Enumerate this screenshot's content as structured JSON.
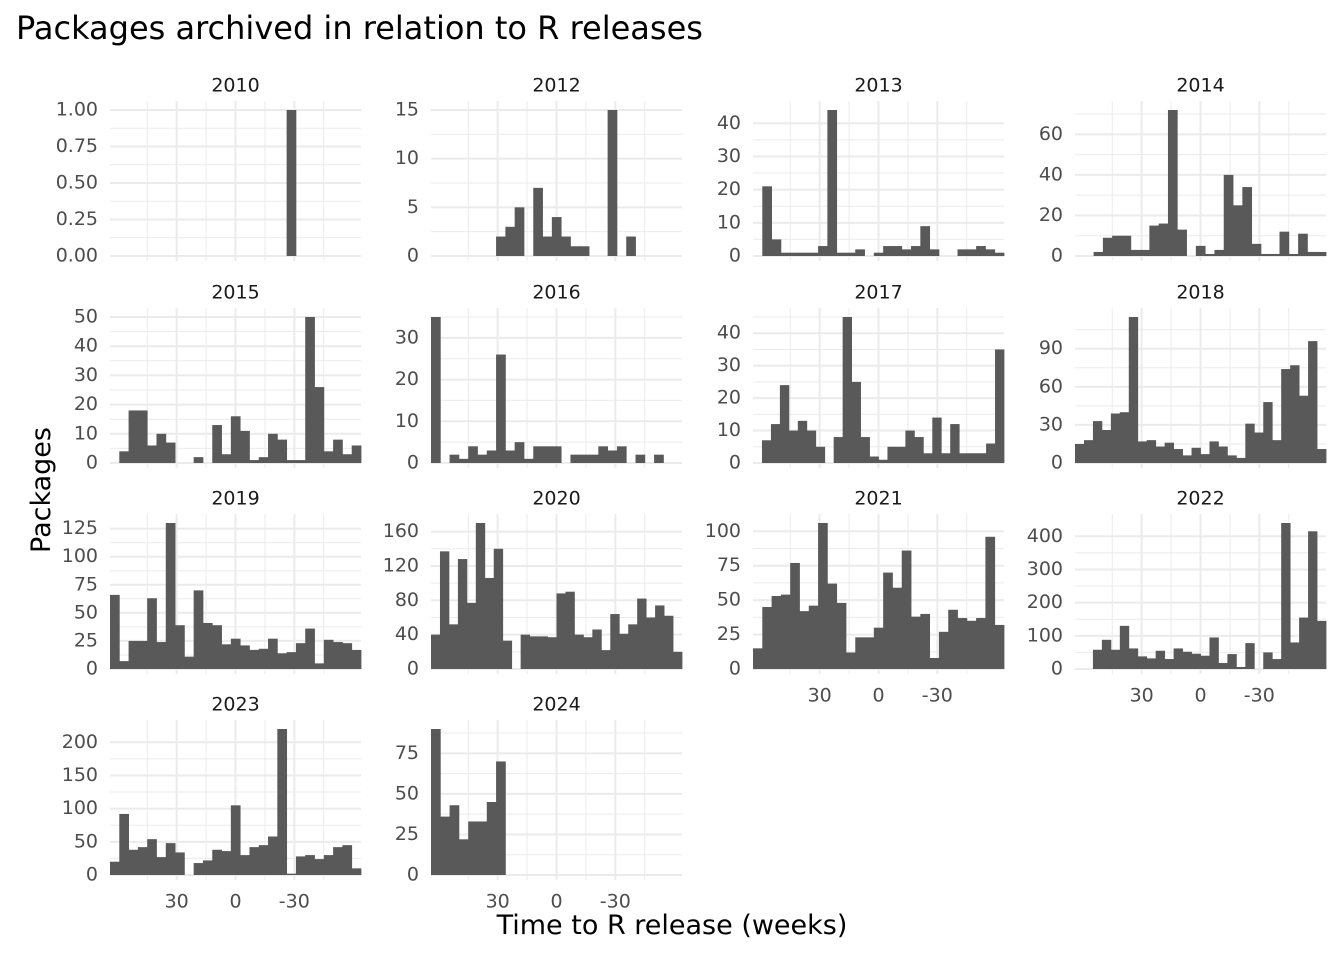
{
  "chart_data": {
    "type": "bar",
    "title": "Packages archived in relation to R releases",
    "xlabel": "Time to R release (weeks)",
    "ylabel": "Packages",
    "x_reversed": true,
    "xlim": [
      -64,
      64
    ],
    "x_ticks": [
      "30",
      "0",
      "-30"
    ],
    "bar_color": "#595959",
    "grid": true,
    "panels": [
      {
        "name": "2010",
        "ylim": [
          0,
          1
        ],
        "yticks": [
          "0.00",
          "0.25",
          "0.50",
          "0.75",
          "1.00"
        ],
        "values": [
          0,
          0,
          0,
          0,
          0,
          0,
          0,
          0,
          0,
          0,
          0,
          0,
          0,
          0,
          0,
          0,
          0,
          0,
          0,
          1,
          0,
          0,
          0,
          0,
          0,
          0,
          0
        ]
      },
      {
        "name": "2012",
        "ylim": [
          0,
          15
        ],
        "yticks": [
          "0",
          "5",
          "10",
          "15"
        ],
        "values": [
          0,
          0,
          0,
          0,
          0,
          0,
          0,
          2,
          3,
          5,
          0,
          7,
          2,
          4,
          2,
          1,
          1,
          0,
          0,
          15,
          0,
          2,
          0,
          0,
          0,
          0,
          0
        ]
      },
      {
        "name": "2013",
        "ylim": [
          0,
          44
        ],
        "yticks": [
          "0",
          "10",
          "20",
          "30",
          "40"
        ],
        "values": [
          0,
          21,
          5,
          1,
          1,
          1,
          1,
          3,
          44,
          1,
          1,
          2,
          0,
          1,
          3,
          3,
          2,
          3,
          9,
          2,
          0,
          0,
          2,
          2,
          3,
          2,
          1
        ]
      },
      {
        "name": "2014",
        "ylim": [
          0,
          72
        ],
        "yticks": [
          "0",
          "20",
          "40",
          "60"
        ],
        "values": [
          0,
          0,
          2,
          9,
          10,
          10,
          3,
          3,
          15,
          16,
          72,
          13,
          0,
          5,
          1,
          3,
          40,
          25,
          34,
          6,
          1,
          1,
          12,
          1,
          11,
          2,
          2
        ]
      },
      {
        "name": "2015",
        "ylim": [
          0,
          50
        ],
        "yticks": [
          "0",
          "10",
          "20",
          "30",
          "40",
          "50"
        ],
        "values": [
          0,
          4,
          18,
          18,
          6,
          10,
          7,
          0,
          0,
          2,
          0,
          13,
          3,
          16,
          11,
          1,
          2,
          10,
          8,
          1,
          1,
          50,
          26,
          4,
          8,
          3,
          6
        ]
      },
      {
        "name": "2016",
        "ylim": [
          0,
          35
        ],
        "yticks": [
          "0",
          "10",
          "20",
          "30"
        ],
        "values": [
          35,
          0,
          2,
          1,
          4,
          2,
          3,
          26,
          3,
          5,
          1,
          4,
          4,
          4,
          0,
          2,
          2,
          2,
          4,
          3,
          4,
          0,
          2,
          0,
          2,
          0,
          0
        ]
      },
      {
        "name": "2017",
        "ylim": [
          0,
          45
        ],
        "yticks": [
          "0",
          "10",
          "20",
          "30",
          "40"
        ],
        "values": [
          0,
          7,
          12,
          24,
          10,
          13,
          10,
          5,
          0,
          8,
          45,
          25,
          8,
          2,
          1,
          5,
          5,
          10,
          8,
          3,
          14,
          3,
          12,
          3,
          3,
          3,
          6,
          35
        ]
      },
      {
        "name": "2018",
        "ylim": [
          0,
          115
        ],
        "yticks": [
          "0",
          "30",
          "60",
          "90"
        ],
        "values": [
          15,
          18,
          33,
          26,
          39,
          40,
          115,
          17,
          18,
          13,
          16,
          11,
          6,
          12,
          7,
          17,
          13,
          6,
          4,
          31,
          24,
          48,
          18,
          74,
          77,
          53,
          96,
          11
        ]
      },
      {
        "name": "2019",
        "ylim": [
          0,
          130
        ],
        "yticks": [
          "0",
          "25",
          "50",
          "75",
          "100",
          "125"
        ],
        "values": [
          66,
          7,
          25,
          25,
          63,
          24,
          130,
          39,
          11,
          70,
          41,
          39,
          22,
          27,
          21,
          17,
          18,
          27,
          14,
          15,
          23,
          36,
          5,
          26,
          24,
          23,
          17
        ]
      },
      {
        "name": "2020",
        "ylim": [
          0,
          170
        ],
        "yticks": [
          "0",
          "40",
          "80",
          "120",
          "160"
        ],
        "values": [
          40,
          137,
          52,
          128,
          77,
          170,
          106,
          140,
          33,
          0,
          40,
          38,
          38,
          37,
          88,
          90,
          40,
          37,
          46,
          22,
          64,
          41,
          52,
          82,
          60,
          74,
          62,
          20
        ]
      },
      {
        "name": "2021",
        "ylim": [
          0,
          106
        ],
        "yticks": [
          "0",
          "25",
          "50",
          "75",
          "100"
        ],
        "values": [
          15,
          45,
          53,
          54,
          77,
          42,
          46,
          106,
          62,
          48,
          12,
          23,
          23,
          30,
          70,
          59,
          86,
          38,
          40,
          8,
          27,
          43,
          37,
          35,
          37,
          96,
          32
        ]
      },
      {
        "name": "2022",
        "ylim": [
          0,
          440
        ],
        "yticks": [
          "0",
          "100",
          "200",
          "300",
          "400"
        ],
        "values": [
          0,
          0,
          58,
          88,
          58,
          130,
          62,
          38,
          32,
          55,
          30,
          62,
          52,
          46,
          40,
          95,
          18,
          45,
          6,
          78,
          0,
          50,
          30,
          440,
          80,
          155,
          415,
          145
        ]
      },
      {
        "name": "2023",
        "ylim": [
          0,
          220
        ],
        "yticks": [
          "0",
          "50",
          "100",
          "150",
          "200"
        ],
        "values": [
          20,
          92,
          38,
          42,
          54,
          27,
          48,
          34,
          0,
          18,
          22,
          38,
          36,
          105,
          30,
          42,
          45,
          58,
          220,
          2,
          28,
          30,
          24,
          30,
          42,
          45,
          10
        ]
      },
      {
        "name": "2024",
        "ylim": [
          0,
          90
        ],
        "yticks": [
          "0",
          "25",
          "50",
          "75"
        ],
        "values": [
          90,
          36,
          43,
          22,
          33,
          33,
          45,
          70,
          0,
          0,
          0,
          0,
          0,
          0,
          0,
          0,
          0,
          0,
          0,
          0,
          0,
          0,
          0,
          0,
          0,
          0,
          0
        ]
      }
    ]
  }
}
